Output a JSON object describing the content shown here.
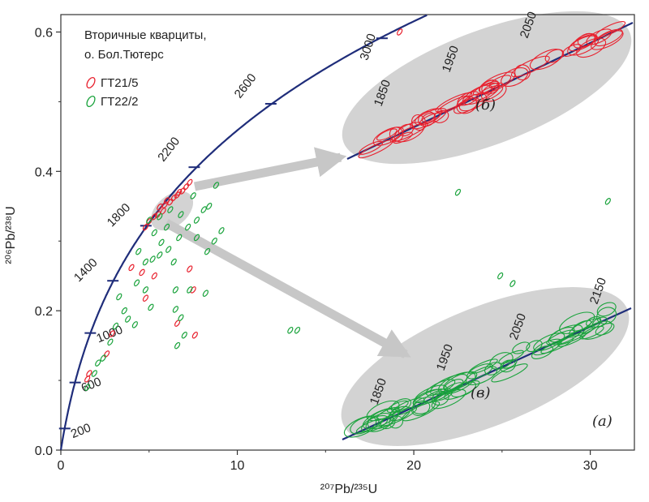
{
  "chart_data": {
    "type": "scatter",
    "xlabel": "²⁰⁷Pb/²³⁵U",
    "ylabel": "²⁰⁶Pb/²³⁸U",
    "xlim": [
      0,
      32.5
    ],
    "ylim": [
      0,
      0.625
    ],
    "x_ticks": [
      "0",
      "10",
      "20",
      "30"
    ],
    "x_tick_values": [
      0,
      10,
      20,
      30
    ],
    "y_ticks": [
      "0.0",
      "0.2",
      "0.4",
      "0.6"
    ],
    "y_tick_values": [
      0,
      0.2,
      0.4,
      0.6
    ],
    "legend": {
      "title_line1": "Вторичные кварциты,",
      "title_line2": "о. Бол.Тютерс",
      "placement": "top-left"
    },
    "concordia_ages": [
      {
        "label": "200",
        "x": 0.22,
        "y": 0.031
      },
      {
        "label": "600",
        "x": 0.81,
        "y": 0.097
      },
      {
        "label": "1000",
        "x": 1.67,
        "y": 0.168
      },
      {
        "label": "1400",
        "x": 2.95,
        "y": 0.243
      },
      {
        "label": "1800",
        "x": 4.82,
        "y": 0.322
      },
      {
        "label": "2200",
        "x": 7.56,
        "y": 0.406
      },
      {
        "label": "2600",
        "x": 11.9,
        "y": 0.497
      },
      {
        "label": "3000",
        "x": 18.2,
        "y": 0.591
      }
    ],
    "series": [
      {
        "name": "ГТ21/5",
        "color": "#e8212e",
        "points": [
          [
            5.3,
            0.335
          ],
          [
            5.5,
            0.338
          ],
          [
            5.8,
            0.343
          ],
          [
            5.9,
            0.352
          ],
          [
            6.2,
            0.356
          ],
          [
            6.4,
            0.362
          ],
          [
            6.6,
            0.366
          ],
          [
            6.9,
            0.372
          ],
          [
            7.1,
            0.378
          ],
          [
            7.3,
            0.384
          ],
          [
            5.0,
            0.328
          ],
          [
            5.6,
            0.349
          ],
          [
            4.8,
            0.32
          ],
          [
            6.0,
            0.358
          ],
          [
            6.7,
            0.37
          ],
          [
            4.0,
            0.262
          ],
          [
            4.6,
            0.255
          ],
          [
            5.3,
            0.25
          ],
          [
            7.3,
            0.26
          ],
          [
            7.5,
            0.23
          ],
          [
            4.8,
            0.218
          ],
          [
            6.6,
            0.182
          ],
          [
            7.6,
            0.165
          ],
          [
            2.9,
            0.167
          ],
          [
            2.6,
            0.138
          ],
          [
            1.6,
            0.11
          ],
          [
            1.5,
            0.102
          ],
          [
            19.2,
            0.6
          ]
        ]
      },
      {
        "name": "ГТ22/2",
        "color": "#1aa33c",
        "points": [
          [
            5.0,
            0.33
          ],
          [
            5.6,
            0.335
          ],
          [
            6.2,
            0.345
          ],
          [
            6.8,
            0.338
          ],
          [
            5.3,
            0.312
          ],
          [
            6.0,
            0.32
          ],
          [
            7.2,
            0.32
          ],
          [
            7.7,
            0.33
          ],
          [
            8.1,
            0.345
          ],
          [
            8.4,
            0.35
          ],
          [
            8.8,
            0.38
          ],
          [
            7.5,
            0.365
          ],
          [
            5.7,
            0.298
          ],
          [
            6.7,
            0.305
          ],
          [
            7.7,
            0.305
          ],
          [
            8.7,
            0.3
          ],
          [
            9.1,
            0.315
          ],
          [
            8.3,
            0.285
          ],
          [
            4.4,
            0.285
          ],
          [
            4.8,
            0.27
          ],
          [
            5.2,
            0.274
          ],
          [
            5.6,
            0.28
          ],
          [
            6.1,
            0.288
          ],
          [
            6.4,
            0.27
          ],
          [
            4.3,
            0.24
          ],
          [
            4.8,
            0.23
          ],
          [
            5.1,
            0.205
          ],
          [
            6.5,
            0.23
          ],
          [
            7.3,
            0.23
          ],
          [
            8.2,
            0.225
          ],
          [
            3.3,
            0.22
          ],
          [
            3.6,
            0.2
          ],
          [
            3.8,
            0.188
          ],
          [
            4.2,
            0.18
          ],
          [
            3.1,
            0.178
          ],
          [
            2.8,
            0.155
          ],
          [
            2.4,
            0.132
          ],
          [
            2.1,
            0.125
          ],
          [
            1.9,
            0.11
          ],
          [
            1.5,
            0.09
          ],
          [
            6.5,
            0.202
          ],
          [
            6.8,
            0.19
          ],
          [
            6.6,
            0.15
          ],
          [
            7.0,
            0.165
          ],
          [
            13.0,
            0.172
          ],
          [
            13.4,
            0.172
          ],
          [
            22.5,
            0.37
          ],
          [
            31.0,
            0.357
          ],
          [
            24.9,
            0.25
          ],
          [
            25.6,
            0.239
          ]
        ]
      }
    ],
    "insets": [
      {
        "id": "б",
        "label": "(б)",
        "series": "ГТ21/5",
        "ages": [
          "1850",
          "1950",
          "2050"
        ]
      },
      {
        "id": "в",
        "label": "(в)",
        "series": "ГТ22/2",
        "ages": [
          "1850",
          "1950",
          "2050",
          "2150"
        ]
      }
    ],
    "panel_label": "(а)"
  }
}
